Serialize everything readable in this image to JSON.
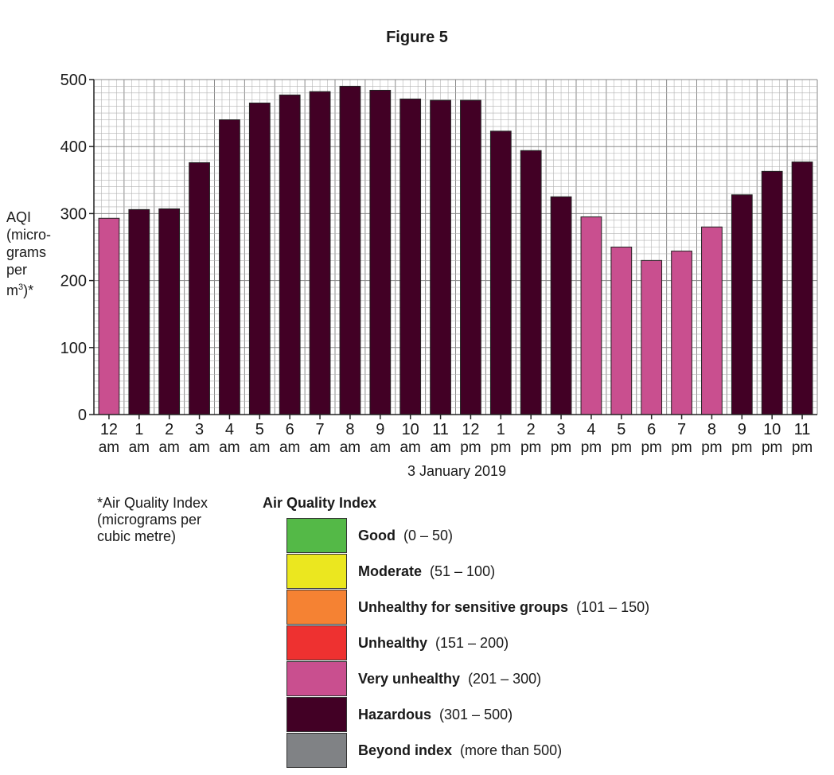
{
  "figure_title": "Figure 5",
  "y_axis_label": {
    "lines": [
      "AQI",
      "(micro-",
      "grams",
      "per"
    ],
    "last_base": "m",
    "last_sup": "3",
    "last_end": ")*"
  },
  "x_axis_title": "3 January 2019",
  "footnote": "*Air Quality Index (micrograms per cubic metre)",
  "legend": {
    "title": "Air Quality Index",
    "items": [
      {
        "name": "Good",
        "range": "(0 – 50)",
        "color": "#54b947"
      },
      {
        "name": "Moderate",
        "range": "(51 – 100)",
        "color": "#ebe71f"
      },
      {
        "name": "Unhealthy for sensitive groups",
        "range": "(101 – 150)",
        "color": "#f58233"
      },
      {
        "name": "Unhealthy",
        "range": "(151 – 200)",
        "color": "#ee3130"
      },
      {
        "name": "Very unhealthy",
        "range": "(201 – 300)",
        "color": "#c94f8f"
      },
      {
        "name": "Hazardous",
        "range": "(301 – 500)",
        "color": "#420025"
      },
      {
        "name": "Beyond index",
        "range": "(more than 500)",
        "color": "#808285"
      }
    ]
  },
  "chart_data": {
    "type": "bar",
    "title": "Figure 5",
    "xlabel": "3 January 2019",
    "ylabel": "AQI (micrograms per m3)*",
    "ylim": [
      0,
      500
    ],
    "yticks": [
      0,
      100,
      200,
      300,
      400,
      500
    ],
    "grid": true,
    "categories": [
      {
        "num": "12",
        "period": "am"
      },
      {
        "num": "1",
        "period": "am"
      },
      {
        "num": "2",
        "period": "am"
      },
      {
        "num": "3",
        "period": "am"
      },
      {
        "num": "4",
        "period": "am"
      },
      {
        "num": "5",
        "period": "am"
      },
      {
        "num": "6",
        "period": "am"
      },
      {
        "num": "7",
        "period": "am"
      },
      {
        "num": "8",
        "period": "am"
      },
      {
        "num": "9",
        "period": "am"
      },
      {
        "num": "10",
        "period": "am"
      },
      {
        "num": "11",
        "period": "am"
      },
      {
        "num": "12",
        "period": "pm"
      },
      {
        "num": "1",
        "period": "pm"
      },
      {
        "num": "2",
        "period": "pm"
      },
      {
        "num": "3",
        "period": "pm"
      },
      {
        "num": "4",
        "period": "pm"
      },
      {
        "num": "5",
        "period": "pm"
      },
      {
        "num": "6",
        "period": "pm"
      },
      {
        "num": "7",
        "period": "pm"
      },
      {
        "num": "8",
        "period": "pm"
      },
      {
        "num": "9",
        "period": "pm"
      },
      {
        "num": "10",
        "period": "pm"
      },
      {
        "num": "11",
        "period": "pm"
      }
    ],
    "values": [
      293,
      306,
      307,
      376,
      440,
      465,
      477,
      482,
      490,
      484,
      471,
      469,
      469,
      423,
      394,
      325,
      295,
      250,
      230,
      244,
      280,
      328,
      363,
      377
    ]
  }
}
